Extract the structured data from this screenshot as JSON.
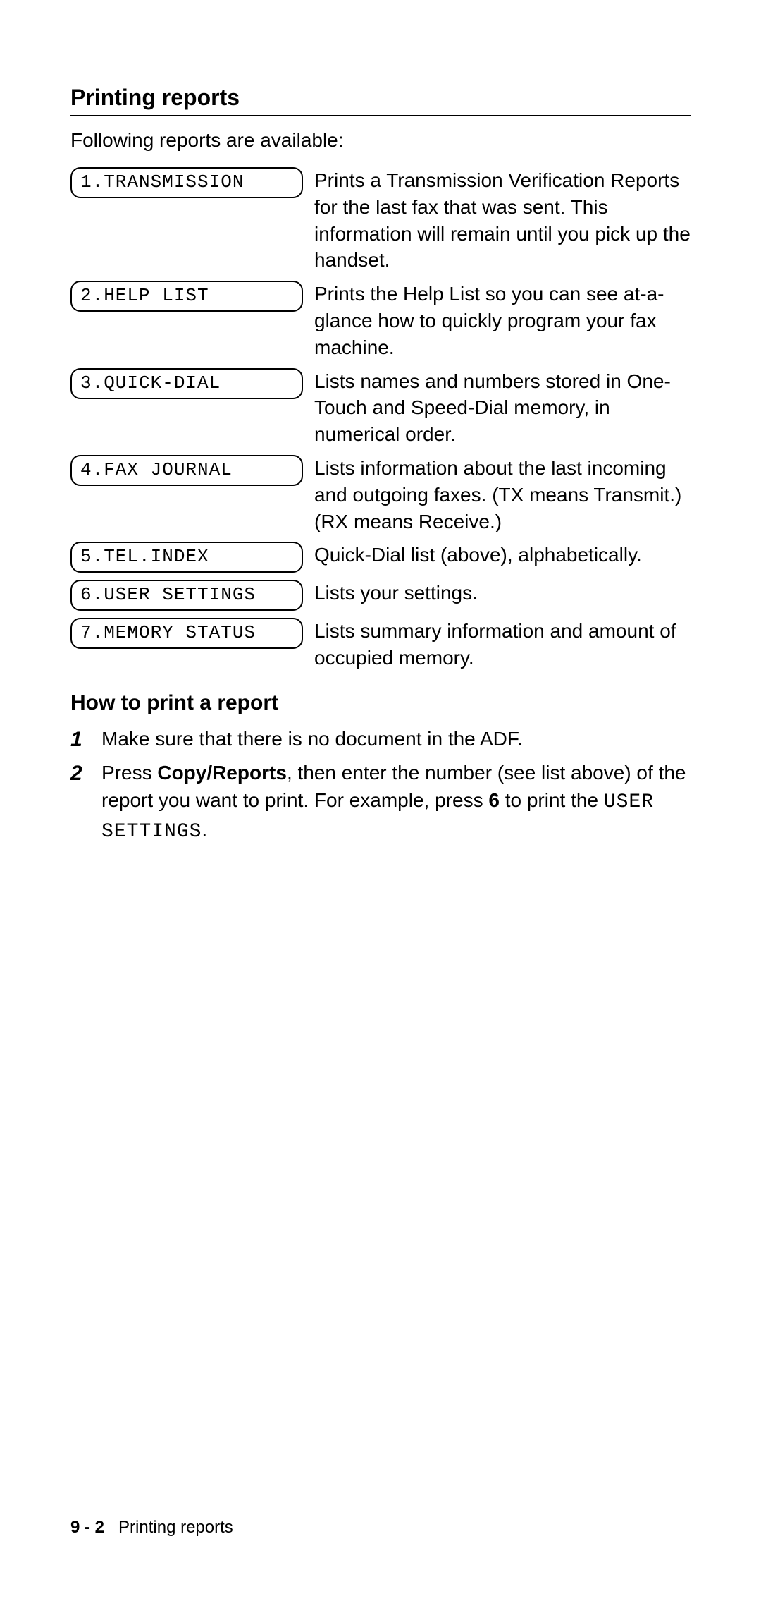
{
  "heading": "Printing reports",
  "intro": "Following reports are available:",
  "reports": [
    {
      "label": "1.TRANSMISSION",
      "desc": "Prints a Transmission Verification Reports for the last fax that was sent. This information will remain until you pick up the handset."
    },
    {
      "label": "2.HELP LIST",
      "desc": "Prints the Help List so you can see at-a-glance how to quickly program your fax machine."
    },
    {
      "label": "3.QUICK-DIAL",
      "desc": "Lists names and numbers stored in One-Touch and Speed-Dial memory, in numerical order."
    },
    {
      "label": "4.FAX JOURNAL",
      "desc": "Lists information about the last incoming and outgoing faxes. (TX means Transmit.) (RX means Receive.)"
    },
    {
      "label": "5.TEL.INDEX",
      "desc": "Quick-Dial list (above), alphabetically."
    },
    {
      "label": "6.USER SETTINGS",
      "desc": "Lists your settings."
    },
    {
      "label": "7.MEMORY STATUS",
      "desc": "Lists summary information and amount of occupied memory."
    }
  ],
  "subheading": "How to print a report",
  "steps": {
    "s1_num": "1",
    "s1_text": "Make sure that there is no document in the ADF.",
    "s2_num": "2",
    "s2_pre": "Press ",
    "s2_bold1": "Copy/Reports",
    "s2_mid": ", then enter the number (see list above) of the report you want to print. For example, press ",
    "s2_bold2": "6",
    "s2_post": " to print the ",
    "s2_mono": "USER SETTINGS",
    "s2_end": "."
  },
  "footer": {
    "page": "9 - 2",
    "title": "Printing reports"
  }
}
